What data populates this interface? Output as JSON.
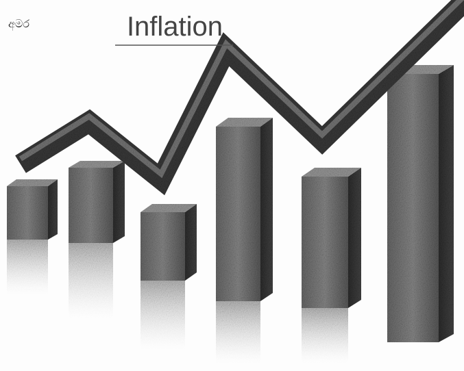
{
  "header": {
    "title": "Inflation",
    "note": "අමර"
  }
}
